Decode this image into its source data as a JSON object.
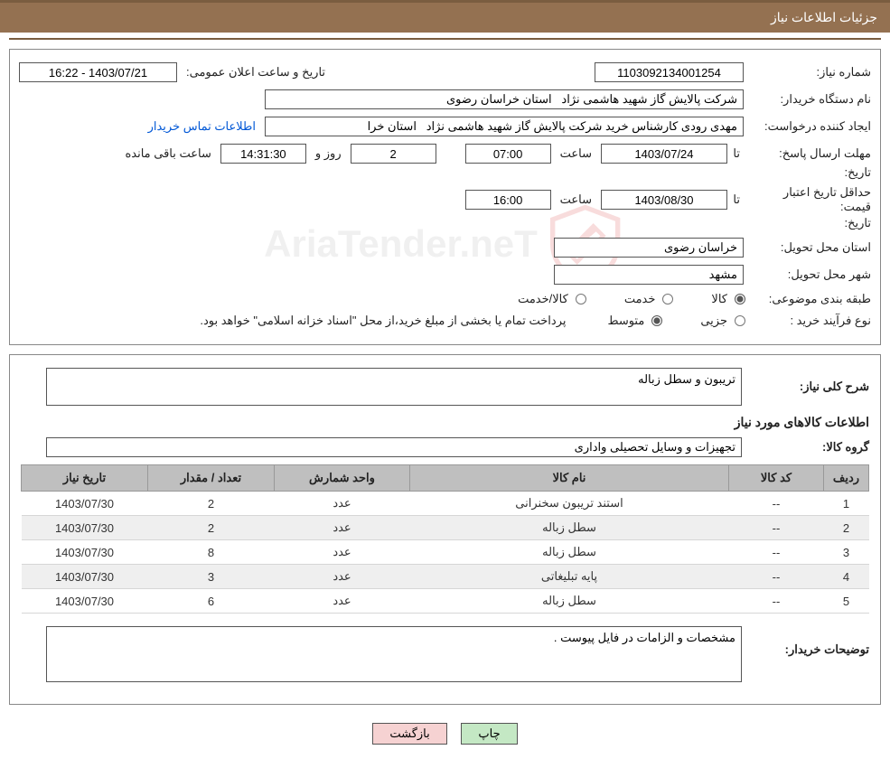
{
  "colors": {
    "header_bg": "#947151",
    "header_border": "#7a5d40",
    "border": "#888888",
    "field_border": "#555555",
    "th_bg": "#bfbfbf",
    "row_alt": "#efefef",
    "btn_green": "#c4e8c4",
    "btn_pink": "#f6d2d2",
    "link": "#0057d6"
  },
  "header": {
    "title": "جزئیات اطلاعات نیاز"
  },
  "labels": {
    "need_number": "شماره نیاز:",
    "announce_datetime": "تاریخ و ساعت اعلان عمومی:",
    "buyer_org": "نام دستگاه خریدار:",
    "requester": "ایجاد کننده درخواست:",
    "buyer_contact_link": "اطلاعات تماس خریدار",
    "reply_deadline": "مهلت ارسال پاسخ:",
    "to_date": "تا تاریخ:",
    "hour": "ساعت",
    "days_and": "روز و",
    "hours_remaining": "ساعت باقی مانده",
    "price_validity": "حداقل تاریخ اعتبار قیمت:",
    "delivery_province": "استان محل تحویل:",
    "delivery_city": "شهر محل تحویل:",
    "topic_class": "طبقه بندی موضوعی:",
    "goods": "کالا",
    "service": "خدمت",
    "goods_service": "کالا/خدمت",
    "purchase_type": "نوع فرآیند خرید :",
    "partial": "جزیی",
    "medium": "متوسط",
    "payment_note": "پرداخت تمام یا بخشی از مبلغ خرید،از محل \"اسناد خزانه اسلامی\" خواهد بود.",
    "need_summary": "شرح کلی نیاز:",
    "items_info": "اطلاعات کالاهای مورد نیاز",
    "goods_group": "گروه کالا:",
    "buyer_notes": "توضیحات خریدار:",
    "print": "چاپ",
    "back": "بازگشت"
  },
  "values": {
    "need_number": "1103092134001254",
    "announce_datetime": "1403/07/21 - 16:22",
    "buyer_org": "شرکت پالایش گاز شهید هاشمی نژاد   استان خراسان رضوی",
    "requester": "مهدی رودی کارشناس خرید شرکت پالایش گاز شهید هاشمی نژاد   استان خرا",
    "reply_to_date": "1403/07/24",
    "reply_to_time": "07:00",
    "days_remaining": "2",
    "time_remaining": "14:31:30",
    "price_valid_date": "1403/08/30",
    "price_valid_time": "16:00",
    "delivery_province": "خراسان رضوی",
    "delivery_city": "مشهد",
    "need_summary": "تریبون و سطل زباله",
    "goods_group": "تجهیزات و وسایل تحصیلی واداری",
    "buyer_notes": "مشخصات و الزامات در فایل پیوست ."
  },
  "table": {
    "headers": {
      "idx": "ردیف",
      "code": "کد کالا",
      "name": "نام کالا",
      "unit": "واحد شمارش",
      "qty": "تعداد / مقدار",
      "date": "تاریخ نیاز"
    },
    "rows": [
      {
        "idx": "1",
        "code": "--",
        "name": "استند تریبون سخنرانی",
        "unit": "عدد",
        "qty": "2",
        "date": "1403/07/30"
      },
      {
        "idx": "2",
        "code": "--",
        "name": "سطل زباله",
        "unit": "عدد",
        "qty": "2",
        "date": "1403/07/30"
      },
      {
        "idx": "3",
        "code": "--",
        "name": "سطل زباله",
        "unit": "عدد",
        "qty": "8",
        "date": "1403/07/30"
      },
      {
        "idx": "4",
        "code": "--",
        "name": "پایه تبلیغاتی",
        "unit": "عدد",
        "qty": "3",
        "date": "1403/07/30"
      },
      {
        "idx": "5",
        "code": "--",
        "name": "سطل زباله",
        "unit": "عدد",
        "qty": "6",
        "date": "1403/07/30"
      }
    ]
  }
}
